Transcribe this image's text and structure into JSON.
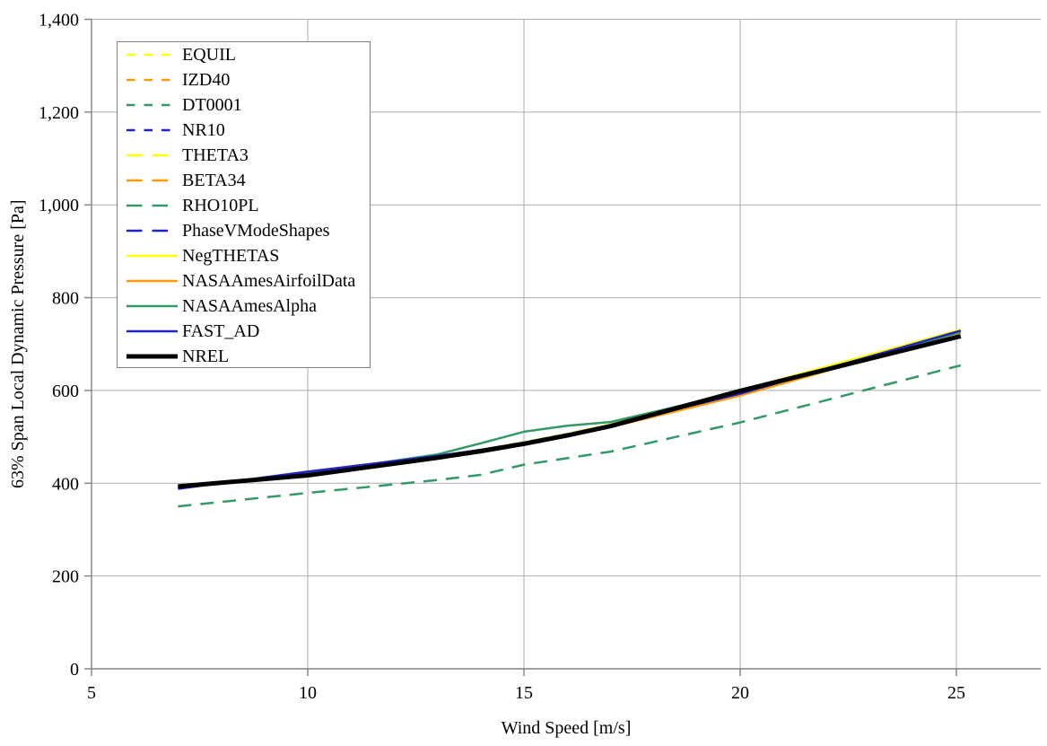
{
  "chart_data": {
    "type": "line",
    "title": "",
    "xlabel": "Wind Speed [m/s]",
    "ylabel": "63% Span Local Dynamic Pressure [Pa]",
    "xlim": [
      5,
      27.2
    ],
    "ylim": [
      0,
      1400
    ],
    "grid": true,
    "legend_position": "top-left",
    "colors": {
      "grid": "#ababab",
      "axis": "#808080",
      "text": "#000000",
      "yellow": "#ffff00",
      "orange": "#ff9900",
      "green": "#339966",
      "blue": "#2121cc",
      "black": "#000000"
    },
    "xticks": {
      "values": [
        5,
        10,
        15,
        20,
        25
      ],
      "labels": [
        "5",
        "10",
        "15",
        "20",
        "25"
      ]
    },
    "yticks": {
      "values": [
        0,
        200,
        400,
        600,
        800,
        1000,
        1200,
        1400
      ],
      "labels": [
        "0",
        "200",
        "400",
        "600",
        "800",
        "1,000",
        "1,200",
        "1,400"
      ]
    },
    "x": [
      7,
      10,
      13,
      14,
      15,
      16,
      17,
      20,
      25.1
    ],
    "series": [
      {
        "name": "EQUIL",
        "color": "#ffff00",
        "style": "dash-short",
        "width": 2.5,
        "values": [
          391,
          421,
          458,
          472,
          488,
          506,
          526,
          597,
          726
        ]
      },
      {
        "name": "IZD40",
        "color": "#ff9900",
        "style": "dash-short",
        "width": 2.5,
        "values": [
          391,
          421,
          458,
          472,
          488,
          506,
          526,
          597,
          726
        ]
      },
      {
        "name": "DT0001",
        "color": "#339966",
        "style": "dash-short",
        "width": 2.5,
        "values": [
          391,
          421,
          458,
          472,
          488,
          506,
          526,
          597,
          726
        ]
      },
      {
        "name": "NR10",
        "color": "#2121cc",
        "style": "dash-short",
        "width": 2.5,
        "values": [
          391,
          421,
          458,
          472,
          488,
          506,
          526,
          597,
          726
        ]
      },
      {
        "name": "THETA3",
        "color": "#ffff00",
        "style": "dash-long",
        "width": 2.5,
        "values": [
          391,
          421,
          458,
          472,
          488,
          506,
          526,
          597,
          726
        ]
      },
      {
        "name": "BETA34",
        "color": "#ff9900",
        "style": "dash-long",
        "width": 2.5,
        "values": [
          391,
          421,
          458,
          472,
          488,
          506,
          526,
          597,
          726
        ]
      },
      {
        "name": "RHO10PL",
        "color": "#339966",
        "style": "dash-long",
        "width": 2.5,
        "values": [
          350,
          379,
          407,
          418,
          440,
          454,
          468,
          531,
          654
        ]
      },
      {
        "name": "PhaseVModeShapes",
        "color": "#2121cc",
        "style": "dash-long",
        "width": 2.5,
        "values": [
          391,
          421,
          458,
          472,
          488,
          506,
          526,
          597,
          726
        ]
      },
      {
        "name": "NegTHETAS",
        "color": "#ffff00",
        "style": "solid",
        "width": 2.5,
        "values": [
          391,
          421,
          458,
          472,
          488,
          506,
          527,
          600,
          731
        ]
      },
      {
        "name": "NASAAmesAirfoilData",
        "color": "#ff9900",
        "style": "solid",
        "width": 2.5,
        "values": [
          390,
          419,
          455,
          468,
          483,
          501,
          521,
          589,
          724
        ]
      },
      {
        "name": "NASAAmesAlpha",
        "color": "#339966",
        "style": "solid",
        "width": 2.5,
        "values": [
          391,
          421,
          462,
          486,
          511,
          524,
          532,
          597,
          726
        ]
      },
      {
        "name": "FAST_AD",
        "color": "#2121cc",
        "style": "solid",
        "width": 2.5,
        "values": [
          388,
          425,
          459,
          472,
          487,
          505,
          525,
          593,
          729
        ]
      },
      {
        "name": "NREL",
        "color": "#000000",
        "style": "solid",
        "width": 5,
        "values": [
          393,
          417,
          455,
          469,
          485,
          503,
          523,
          599,
          717
        ]
      }
    ]
  }
}
